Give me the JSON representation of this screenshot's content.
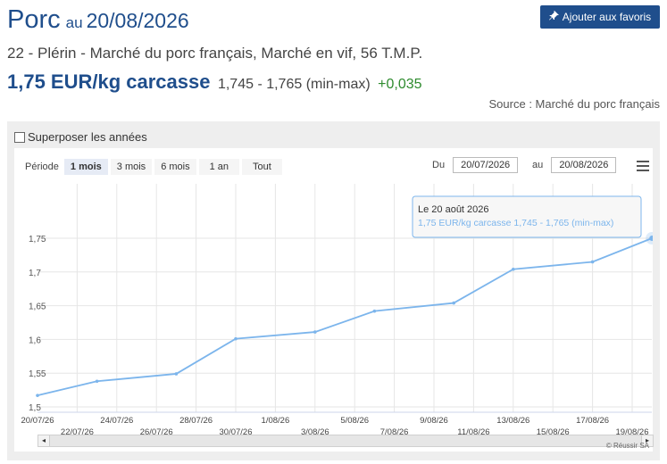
{
  "header": {
    "title": "Porc",
    "au": "au",
    "date": "20/08/2026",
    "favorite_label": "Ajouter aux favoris",
    "subtitle": "22 - Plérin - Marché du porc français, Marché en vif, 56 T.M.P.",
    "price": "1,75 EUR/kg carcasse",
    "range": "1,745 - 1,765 (min-max)",
    "variation": "+0,035",
    "source": "Source : Marché du porc français"
  },
  "controls": {
    "overlay_label": "Superposer les années",
    "period_label": "Période",
    "periods": [
      "1 mois",
      "3 mois",
      "6 mois",
      "1 an",
      "Tout"
    ],
    "active_period": "1 mois",
    "from_label": "Du",
    "from_value": "20/07/2026",
    "to_label": "au",
    "to_value": "20/08/2026"
  },
  "tooltip": {
    "title": "Le 20 août 2026",
    "text": "1,75 EUR/kg carcasse 1,745 - 1,765 (min-max)"
  },
  "copyright": "© Réussir SA",
  "colors": {
    "brand": "#1f4e8c",
    "line": "#7cb5ec",
    "positive": "#2e8b2e"
  },
  "chart_data": {
    "type": "line",
    "x": [
      "20/07/26",
      "23/07/26",
      "27/07/26",
      "30/07/26",
      "3/08/26",
      "6/08/26",
      "10/08/26",
      "13/08/26",
      "17/08/26",
      "20/08/26"
    ],
    "x_day_index": [
      0,
      3,
      7,
      10,
      14,
      17,
      21,
      24,
      28,
      31
    ],
    "series": [
      {
        "values": [
          1.517,
          1.538,
          1.549,
          1.601,
          1.611,
          1.642,
          1.654,
          1.704,
          1.715,
          1.75
        ]
      }
    ],
    "xticks_top": [
      "20/07/26",
      "24/07/26",
      "28/07/26",
      "1/08/26",
      "5/08/26",
      "9/08/26",
      "13/08/26",
      "17/08/26"
    ],
    "xticks_bottom": [
      "22/07/26",
      "26/07/26",
      "30/07/26",
      "3/08/26",
      "7/08/26",
      "11/08/26",
      "15/08/26",
      "19/08/26"
    ],
    "yticks": [
      "1,5",
      "1,55",
      "1,6",
      "1,65",
      "1,7",
      "1,75"
    ],
    "ylim": [
      1.5,
      1.75
    ],
    "grid": true,
    "legend": "none"
  }
}
